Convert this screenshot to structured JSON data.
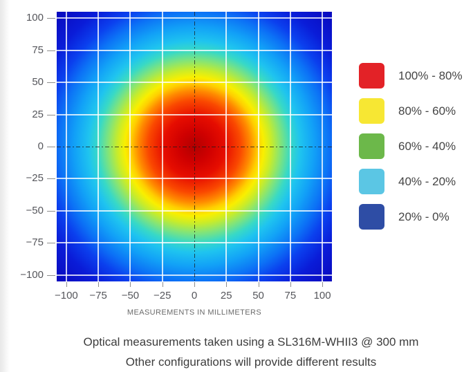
{
  "chart_data": {
    "type": "heatmap",
    "title": "",
    "xlabel": "MEASUREMENTS IN MILLIMETERS",
    "ylabel": "",
    "xlim": [
      -107.5,
      107.5
    ],
    "ylim": [
      -105,
      105
    ],
    "grid": true,
    "grid_interval_mm": 25,
    "ticks": [
      {
        "v": -100,
        "label": "−100"
      },
      {
        "v": -75,
        "label": "−75"
      },
      {
        "v": -50,
        "label": "−50"
      },
      {
        "v": -25,
        "label": "−25"
      },
      {
        "v": 0,
        "label": "0"
      },
      {
        "v": 25,
        "label": "25"
      },
      {
        "v": 50,
        "label": "50"
      },
      {
        "v": 75,
        "label": "75"
      },
      {
        "v": 100,
        "label": "100"
      }
    ],
    "crosshair_at": 0,
    "pattern": "radial intensity distribution, 100% at center (0,0) falling to 0% at corners",
    "intensity_bands_radius_mm": [
      {
        "band": "100% - 80%",
        "radius_mm": "0 - 45"
      },
      {
        "band": "80% - 60%",
        "radius_mm": "45 - 60"
      },
      {
        "band": "60% - 40%",
        "radius_mm": "60 - 72"
      },
      {
        "band": "40% - 20%",
        "radius_mm": "72 - 85"
      },
      {
        "band": "20% - 0%",
        "radius_mm": "85+"
      }
    ],
    "gradient_stops": [
      {
        "pos": 0,
        "color": "#b20000"
      },
      {
        "pos": 8,
        "color": "#cf0000"
      },
      {
        "pos": 16,
        "color": "#e60d00"
      },
      {
        "pos": 24,
        "color": "#fa4800"
      },
      {
        "pos": 29,
        "color": "#ff8a00"
      },
      {
        "pos": 33,
        "color": "#ffcf00"
      },
      {
        "pos": 36,
        "color": "#f9ef00"
      },
      {
        "pos": 40,
        "color": "#c8ec2a"
      },
      {
        "pos": 45,
        "color": "#7fe47c"
      },
      {
        "pos": 50,
        "color": "#38d9c6"
      },
      {
        "pos": 55,
        "color": "#1fc4ef"
      },
      {
        "pos": 62,
        "color": "#12a2f7"
      },
      {
        "pos": 70,
        "color": "#0c72f6"
      },
      {
        "pos": 77,
        "color": "#0b40ee"
      },
      {
        "pos": 86,
        "color": "#0a1cd8"
      },
      {
        "pos": 100,
        "color": "#0909bd"
      }
    ]
  },
  "legend": {
    "position": "right",
    "entries": [
      {
        "color": "#e32227",
        "label": "100% - 80%"
      },
      {
        "color": "#f7e733",
        "label": "80% - 60%"
      },
      {
        "color": "#6cb84a",
        "label": "60% - 40%"
      },
      {
        "color": "#5bc6e4",
        "label": "40% - 20%"
      },
      {
        "color": "#2e4da5",
        "label": "20% - 0%"
      }
    ]
  },
  "caption": {
    "line1": "Optical measurements taken using a SL316M-WHII3 @ 300 mm",
    "line2": "Other configurations will provide different results"
  }
}
